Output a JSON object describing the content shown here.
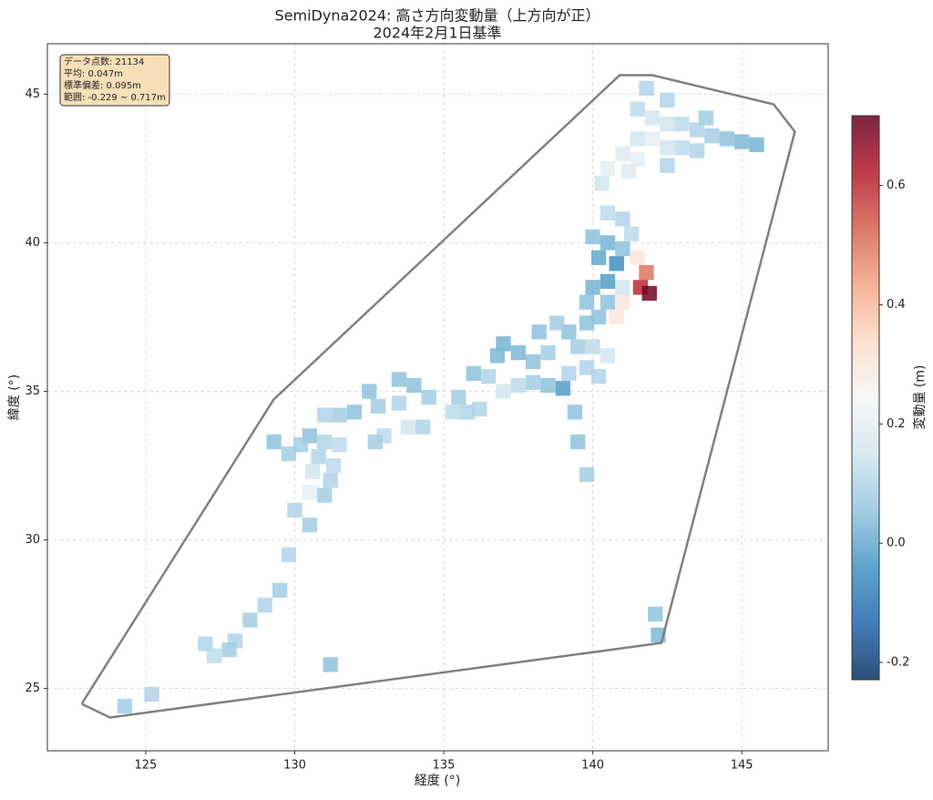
{
  "chart_data": {
    "type": "scatter",
    "title": "SemiDyna2024: 高さ方向変動量（上方向が正）",
    "subtitle": "2024年2月1日基準",
    "x_label": "経度 (°)",
    "y_label": "緯度 (°)",
    "colorbar_label": "変動量 (m)",
    "annotation": [
      "データ点数: 21134",
      "平均: 0.047m",
      "標準偏差: 0.095m",
      "範囲: -0.229 ~ 0.717m"
    ],
    "xlim": [
      121.7,
      147.9
    ],
    "ylim": [
      22.9,
      46.7
    ],
    "xticks": [
      125,
      130,
      135,
      140,
      145
    ],
    "yticks": [
      25,
      30,
      35,
      40,
      45
    ],
    "clim": [
      -0.229,
      0.717
    ],
    "cticks": [
      -0.2,
      {
        "value": 0,
        "label": "0.0"
      },
      0.2,
      0.4,
      0.6
    ],
    "colormap": [
      "#053061",
      "#2166ac",
      "#4393c3",
      "#92c5de",
      "#d1e5f0",
      "#f7f7f7",
      "#fddbc7",
      "#f4a582",
      "#d6604d",
      "#b2182b",
      "#67001f"
    ],
    "grid": true,
    "hull": {
      "color": "#808080",
      "x": [
        122.85,
        123.8,
        142.3,
        146.78,
        146.07,
        142.0,
        140.9,
        129.29,
        122.85
      ],
      "y": [
        24.48,
        24.02,
        26.53,
        43.74,
        44.66,
        45.64,
        45.64,
        34.72,
        24.48
      ]
    },
    "x": [
      141.8,
      141.5,
      142,
      142.5,
      143,
      143.5,
      144,
      144.5,
      145,
      145.5,
      141.5,
      142,
      142.5,
      143,
      143.5,
      141,
      141.5,
      142.5,
      140.5,
      140.3,
      141.2,
      142.5,
      143.8,
      140.5,
      141,
      141.3,
      140,
      140.5,
      141,
      140.2,
      140.8,
      141.5,
      141.8,
      141.6,
      141.9,
      141,
      140.5,
      140,
      139.8,
      140.5,
      141,
      140.8,
      140.2,
      139.8,
      139.2,
      138.8,
      138.2,
      139.5,
      140,
      140.5,
      139.8,
      140.2,
      139.2,
      138.5,
      138,
      137.5,
      137,
      136.8,
      138.5,
      139,
      138,
      137.5,
      137,
      136.5,
      136,
      135.5,
      135.8,
      136.2,
      135.3,
      134.5,
      134,
      133.5,
      133.5,
      132.8,
      132.5,
      132,
      131.5,
      131,
      133,
      133.8,
      134.3,
      132.7,
      130.5,
      130.2,
      131,
      131.5,
      130.8,
      131.3,
      130.6,
      131.2,
      130.5,
      131,
      129.8,
      129.3,
      130.5,
      129.8,
      129.5,
      129,
      128.5,
      128,
      127.8,
      127,
      131.2,
      124.3,
      125.2,
      142.1,
      142.2,
      130,
      127.3,
      139.4,
      139.5,
      139.8
    ],
    "y": [
      45.2,
      44.5,
      44.2,
      44,
      44,
      43.8,
      43.6,
      43.5,
      43.4,
      43.3,
      43.5,
      43.5,
      43.2,
      43.2,
      43.1,
      43,
      42.8,
      42.6,
      42.5,
      42,
      42.4,
      44.8,
      44.2,
      41,
      40.8,
      40.3,
      40.2,
      40,
      39.8,
      39.5,
      39.3,
      39.5,
      39,
      38.5,
      38.3,
      38.5,
      38.7,
      38.5,
      38,
      38,
      38,
      37.5,
      37.5,
      37.3,
      37,
      37.3,
      37,
      36.5,
      36.5,
      36.2,
      35.8,
      35.5,
      35.6,
      36.3,
      36,
      36.3,
      36.6,
      36.2,
      35.2,
      35.1,
      35.3,
      35.2,
      35,
      35.5,
      35.6,
      34.8,
      34.3,
      34.4,
      34.3,
      34.8,
      35.2,
      35.4,
      34.6,
      34.5,
      35,
      34.3,
      34.2,
      34.2,
      33.5,
      33.8,
      33.8,
      33.3,
      33.5,
      33.2,
      33.3,
      33.2,
      32.8,
      32.5,
      32.3,
      32,
      31.6,
      31.5,
      32.9,
      33.3,
      30.5,
      29.5,
      28.3,
      27.8,
      27.3,
      26.6,
      26.3,
      26.5,
      25.8,
      24.4,
      24.8,
      27.5,
      26.8,
      31,
      26.1,
      34.3,
      33.3,
      32.2
    ],
    "values": [
      0.1,
      0.12,
      0.15,
      0.15,
      0.12,
      0.1,
      0.08,
      0.05,
      0.03,
      0.02,
      0.15,
      0.2,
      0.15,
      0.12,
      0.1,
      0.18,
      0.2,
      0.1,
      0.2,
      0.15,
      0.18,
      0.1,
      0.08,
      0.12,
      0.1,
      0.12,
      0.05,
      0.02,
      0.05,
      0.0,
      -0.05,
      0.3,
      0.5,
      0.6,
      0.7,
      0.15,
      -0.02,
      0.02,
      0.05,
      0.05,
      0.3,
      0.3,
      0.05,
      0.05,
      0.05,
      0.08,
      0.05,
      0.08,
      0.12,
      0.15,
      0.1,
      0.1,
      0.1,
      0.08,
      0.05,
      0.03,
      0.02,
      0.03,
      0.05,
      -0.02,
      0.08,
      0.12,
      0.15,
      0.1,
      0.05,
      0.08,
      0.1,
      0.1,
      0.12,
      0.08,
      0.05,
      0.05,
      0.1,
      0.08,
      0.05,
      0.05,
      0.08,
      0.1,
      0.12,
      0.15,
      0.1,
      0.08,
      0.05,
      0.08,
      0.1,
      0.12,
      0.1,
      0.12,
      0.15,
      0.1,
      0.2,
      0.08,
      0.08,
      0.05,
      0.08,
      0.1,
      0.08,
      0.1,
      0.08,
      0.1,
      0.08,
      0.1,
      0.05,
      0.08,
      0.1,
      0.05,
      0.03,
      0.1,
      0.12,
      0.05,
      0.05,
      0.08
    ]
  }
}
